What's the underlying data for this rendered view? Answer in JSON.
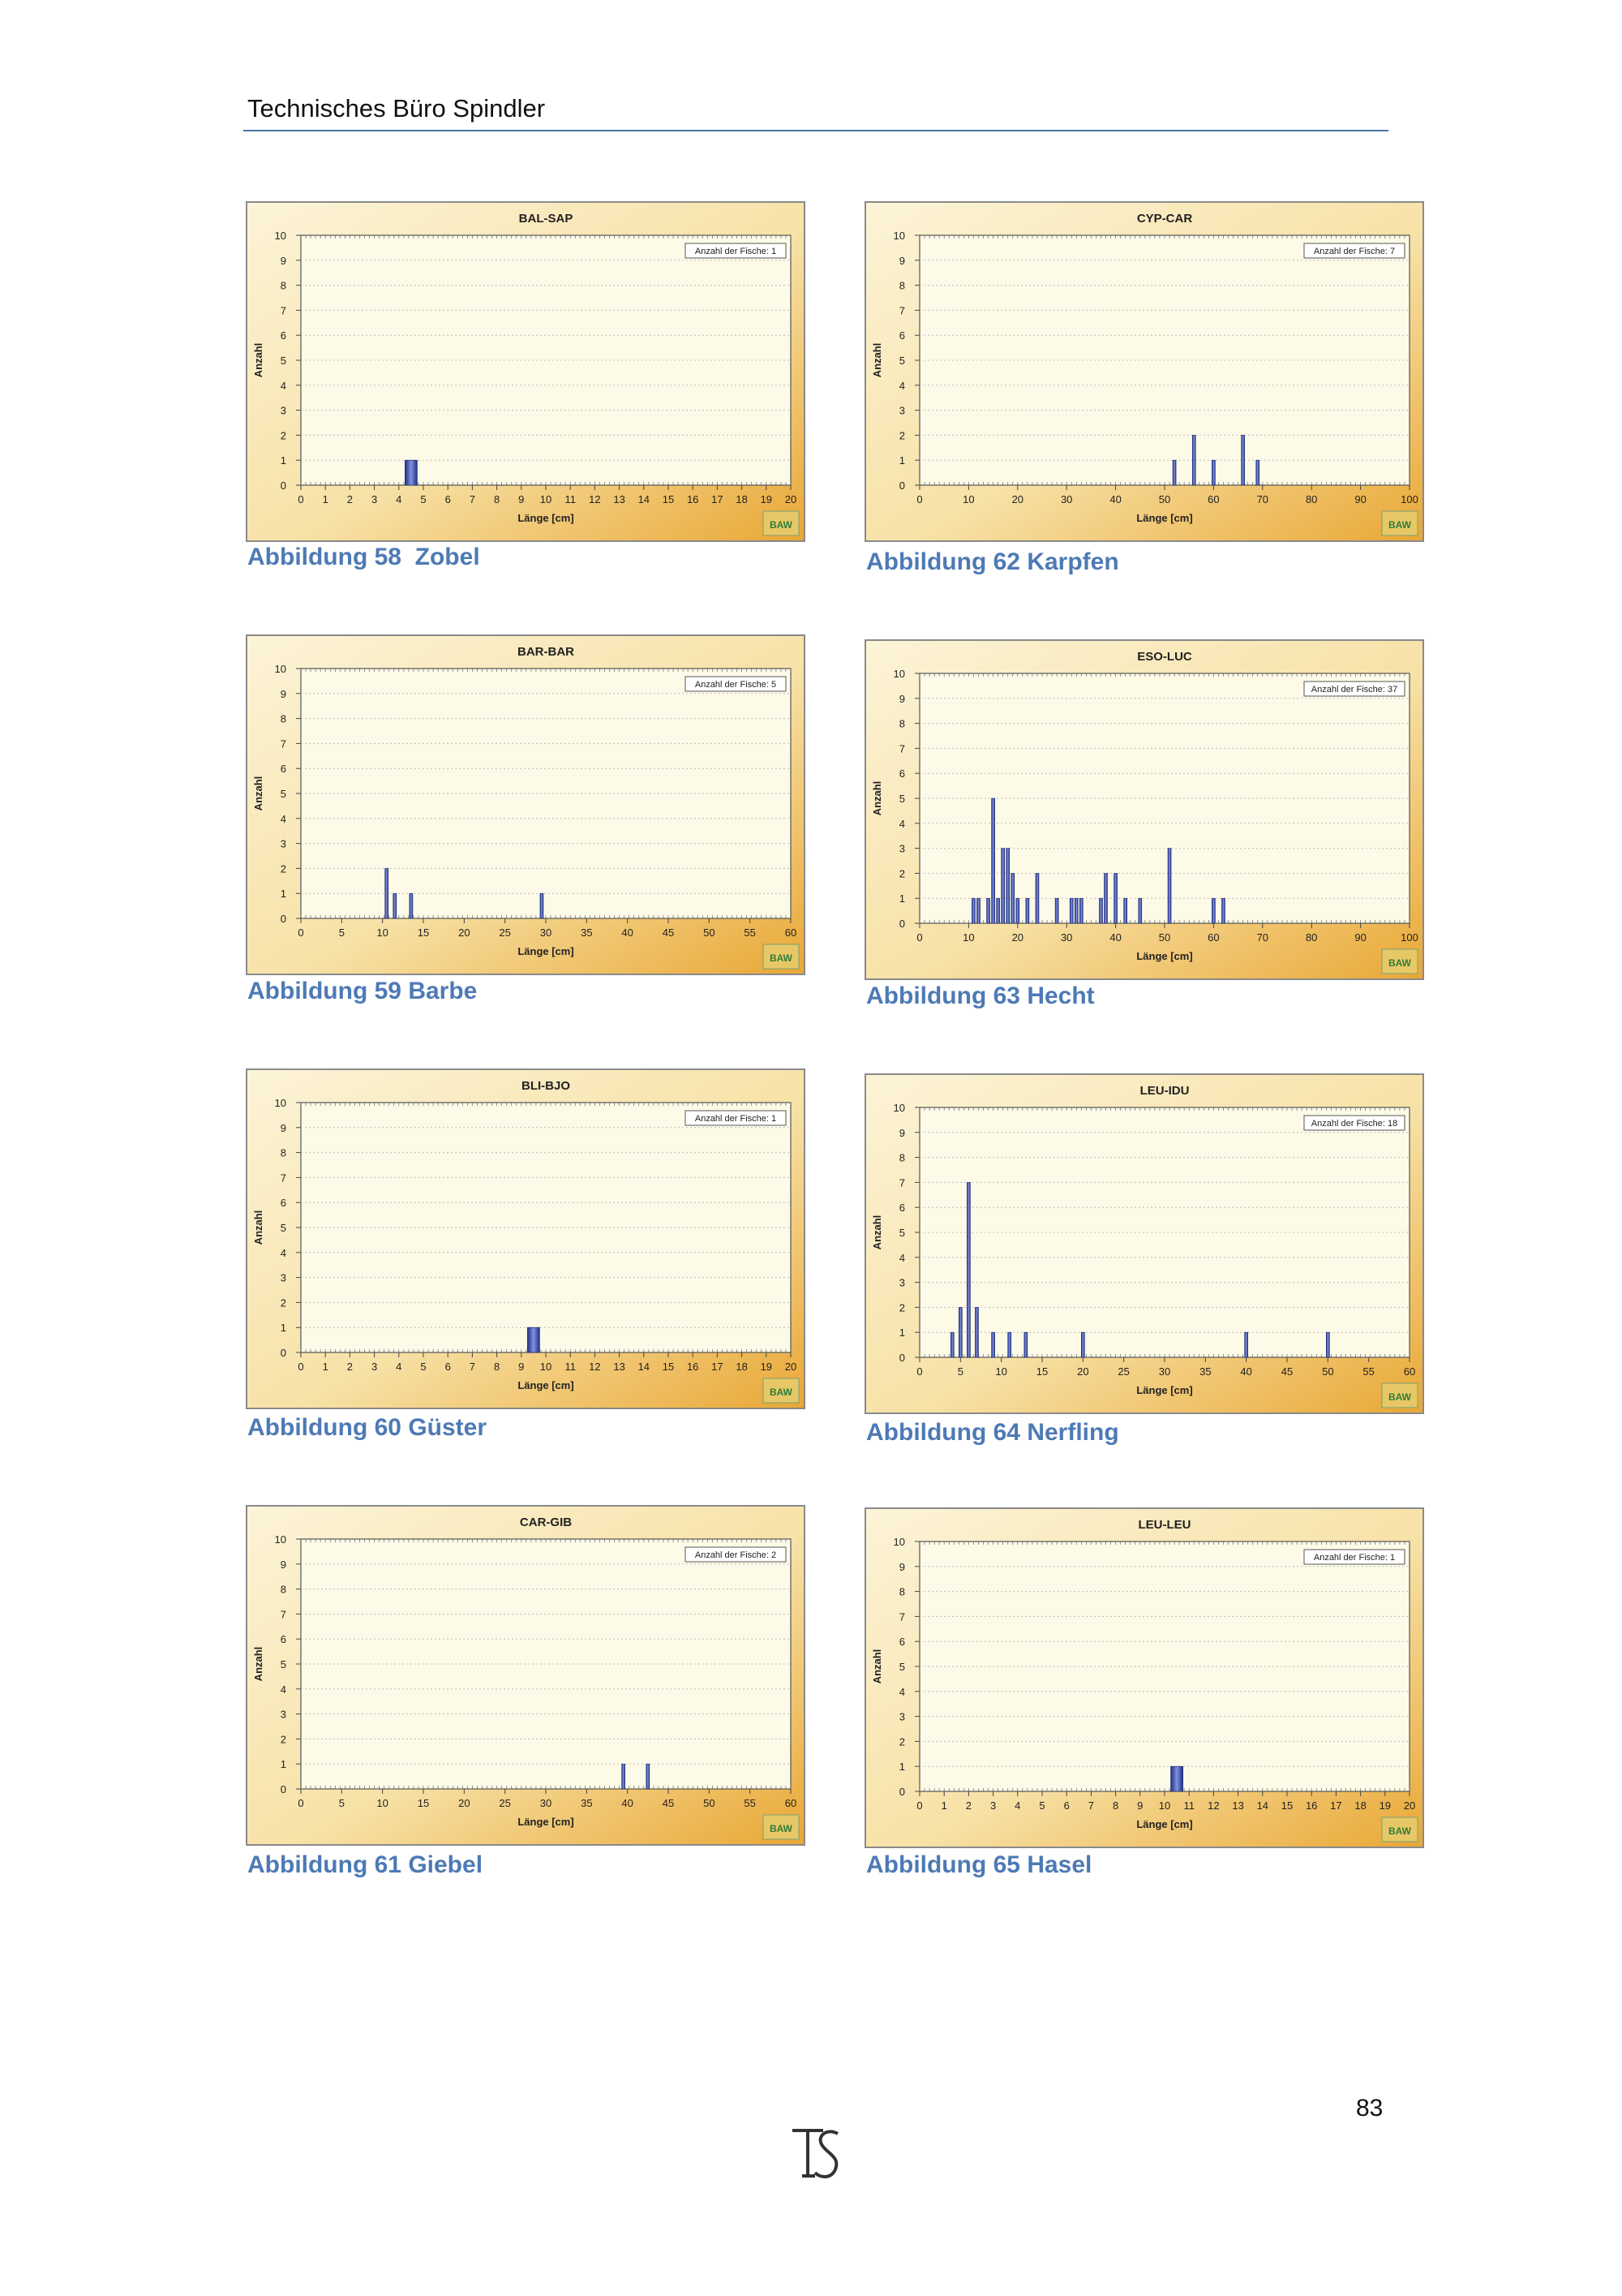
{
  "header": {
    "title": "Technisches Büro Spindler"
  },
  "footer": {
    "page_number": "83"
  },
  "chart_common": {
    "ylabel": "Anzahl",
    "xlabel": "Länge [cm]",
    "legend_prefix": "Anzahl der Fische: ",
    "watermark": "BAW"
  },
  "charts": [
    {
      "caption": "Abbildung 58  Zobel"
    },
    {
      "caption": "Abbildung 62 Karpfen"
    },
    {
      "caption": "Abbildung 59 Barbe"
    },
    {
      "caption": "Abbildung 63 Hecht"
    },
    {
      "caption": "Abbildung 60 Güster"
    },
    {
      "caption": "Abbildung 64 Nerfling"
    },
    {
      "caption": "Abbildung 61 Giebel"
    },
    {
      "caption": "Abbildung 65 Hasel"
    }
  ],
  "chart_data": [
    {
      "type": "bar",
      "title": "BAL-SAP",
      "fish_count": 1,
      "xlabel": "Länge [cm]",
      "ylabel": "Anzahl",
      "ylim": [
        0,
        10
      ],
      "xlim": [
        0,
        20
      ],
      "xticks": [
        0,
        1,
        2,
        3,
        4,
        5,
        6,
        7,
        8,
        9,
        10,
        11,
        12,
        13,
        14,
        15,
        16,
        17,
        18,
        19,
        20
      ],
      "bar_width": 0.5,
      "x": [
        4.5
      ],
      "values": [
        1
      ]
    },
    {
      "type": "bar",
      "title": "CYP-CAR",
      "fish_count": 7,
      "xlabel": "Länge [cm]",
      "ylabel": "Anzahl",
      "ylim": [
        0,
        10
      ],
      "xlim": [
        0,
        100
      ],
      "xticks": [
        0,
        10,
        20,
        30,
        40,
        50,
        60,
        70,
        80,
        90,
        100
      ],
      "bar_width": 0.6,
      "x": [
        52,
        56,
        60,
        66,
        69
      ],
      "values": [
        1,
        2,
        1,
        2,
        1
      ]
    },
    {
      "type": "bar",
      "title": "BAR-BAR",
      "fish_count": 5,
      "xlabel": "Länge [cm]",
      "ylabel": "Anzahl",
      "ylim": [
        0,
        10
      ],
      "xlim": [
        0,
        60
      ],
      "xticks": [
        0,
        5,
        10,
        15,
        20,
        25,
        30,
        35,
        40,
        45,
        50,
        55,
        60
      ],
      "bar_width": 0.4,
      "x": [
        10.5,
        11.5,
        13.5,
        29.5
      ],
      "values": [
        2,
        1,
        1,
        1
      ]
    },
    {
      "type": "bar",
      "title": "ESO-LUC",
      "fish_count": 37,
      "xlabel": "Länge [cm]",
      "ylabel": "Anzahl",
      "ylim": [
        0,
        10
      ],
      "xlim": [
        0,
        100
      ],
      "xticks": [
        0,
        10,
        20,
        30,
        40,
        50,
        60,
        70,
        80,
        90,
        100
      ],
      "bar_width": 0.6,
      "x": [
        11,
        12,
        14,
        15,
        16,
        17,
        18,
        19,
        20,
        22,
        24,
        28,
        31,
        32,
        33,
        37,
        38,
        40,
        42,
        45,
        51,
        60,
        62
      ],
      "values": [
        1,
        1,
        1,
        5,
        1,
        3,
        3,
        2,
        1,
        1,
        2,
        1,
        1,
        1,
        1,
        1,
        2,
        2,
        1,
        1,
        3,
        1,
        1
      ]
    },
    {
      "type": "bar",
      "title": "BLI-BJO",
      "fish_count": 1,
      "xlabel": "Länge [cm]",
      "ylabel": "Anzahl",
      "ylim": [
        0,
        10
      ],
      "xlim": [
        0,
        20
      ],
      "xticks": [
        0,
        1,
        2,
        3,
        4,
        5,
        6,
        7,
        8,
        9,
        10,
        11,
        12,
        13,
        14,
        15,
        16,
        17,
        18,
        19,
        20
      ],
      "bar_width": 0.5,
      "x": [
        9.5
      ],
      "values": [
        1
      ]
    },
    {
      "type": "bar",
      "title": "LEU-IDU",
      "fish_count": 18,
      "xlabel": "Länge [cm]",
      "ylabel": "Anzahl",
      "ylim": [
        0,
        10
      ],
      "xlim": [
        0,
        60
      ],
      "xticks": [
        0,
        5,
        10,
        15,
        20,
        25,
        30,
        35,
        40,
        45,
        50,
        55,
        60
      ],
      "bar_width": 0.4,
      "x": [
        4,
        5,
        6,
        7,
        9,
        11,
        13,
        20,
        40,
        50
      ],
      "values": [
        1,
        2,
        7,
        2,
        1,
        1,
        1,
        1,
        1,
        1
      ]
    },
    {
      "type": "bar",
      "title": "CAR-GIB",
      "fish_count": 2,
      "xlabel": "Länge [cm]",
      "ylabel": "Anzahl",
      "ylim": [
        0,
        10
      ],
      "xlim": [
        0,
        60
      ],
      "xticks": [
        0,
        5,
        10,
        15,
        20,
        25,
        30,
        35,
        40,
        45,
        50,
        55,
        60
      ],
      "bar_width": 0.4,
      "x": [
        39.5,
        42.5
      ],
      "values": [
        1,
        1
      ]
    },
    {
      "type": "bar",
      "title": "LEU-LEU",
      "fish_count": 1,
      "xlabel": "Länge [cm]",
      "ylabel": "Anzahl",
      "ylim": [
        0,
        10
      ],
      "xlim": [
        0,
        20
      ],
      "xticks": [
        0,
        1,
        2,
        3,
        4,
        5,
        6,
        7,
        8,
        9,
        10,
        11,
        12,
        13,
        14,
        15,
        16,
        17,
        18,
        19,
        20
      ],
      "bar_width": 0.5,
      "x": [
        10.5
      ],
      "values": [
        1
      ]
    }
  ]
}
